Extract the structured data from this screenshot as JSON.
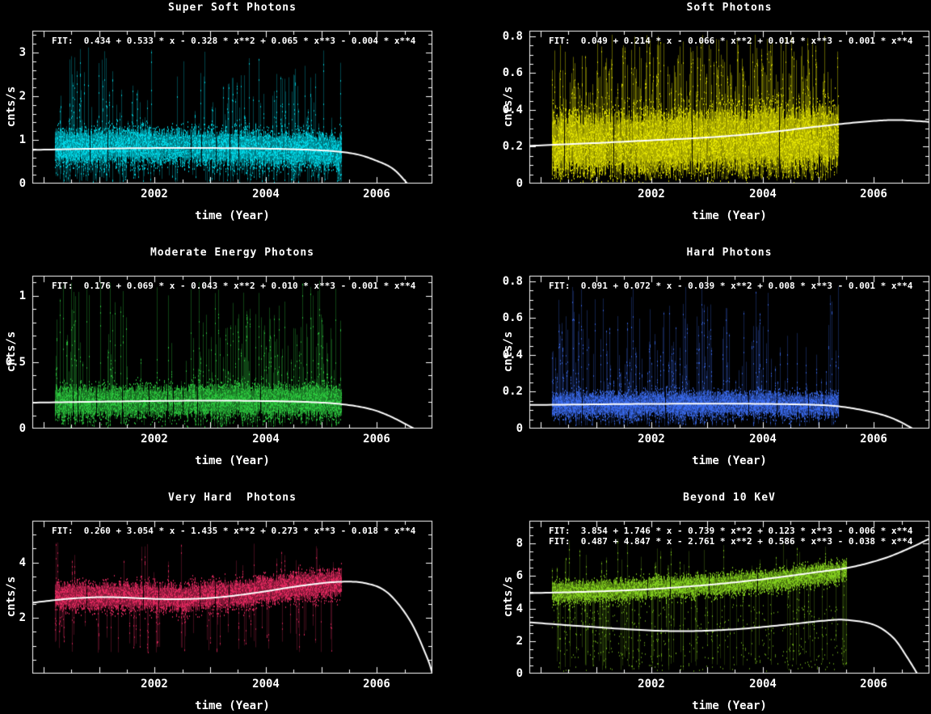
{
  "figure": {
    "background": "#000000",
    "text_color": "#ffffff",
    "axis_color": "#ffffff",
    "fit_curve_color": "#ffffff"
  },
  "chart_data": [
    {
      "type": "scatter",
      "title": "Super Soft Photons",
      "xlabel": "time (Year)",
      "ylabel": "cnts/s",
      "xlim": [
        1999.8,
        2007.0
      ],
      "ylim": [
        0,
        3.5
      ],
      "xticks": [
        2002,
        2004,
        2006
      ],
      "xtick_labels": [
        "2002",
        "2004",
        "2006"
      ],
      "yticks": [
        0,
        1,
        2,
        3
      ],
      "ytick_labels": [
        "0",
        "1",
        "2",
        "3"
      ],
      "y_minor": 0.2,
      "x_data_range": [
        2000.2,
        2005.35
      ],
      "point_color": "#00dfee",
      "fit_labels": [
        "FIT:  0.434 + 0.533 * x - 0.328 * x**2 + 0.065 * x**3 - 0.004 * x**4"
      ],
      "fit_coefficients": [
        [
          0.434,
          0.533,
          -0.328,
          0.065,
          -0.004
        ]
      ],
      "fit_curves": [
        [
          [
            1999.8,
            0.77
          ],
          [
            2001.0,
            0.8
          ],
          [
            2002.5,
            0.815
          ],
          [
            2004.0,
            0.8
          ],
          [
            2005.0,
            0.76
          ],
          [
            2005.6,
            0.68
          ],
          [
            2006.0,
            0.52
          ],
          [
            2006.3,
            0.33
          ],
          [
            2006.55,
            0.0
          ]
        ]
      ],
      "scatter_profile": {
        "seed": 101,
        "baseline": [
          [
            2000.2,
            0.85
          ],
          [
            2001.5,
            0.86
          ],
          [
            2003.0,
            0.84
          ],
          [
            2004.2,
            0.8
          ],
          [
            2005.35,
            0.74
          ]
        ],
        "core_halfwidth": 0.33,
        "dashes": 9,
        "up": {
          "prob": 0.5,
          "max": 3.15,
          "pow": 1.8
        },
        "down": {
          "prob": 0.5,
          "min": 0.02
        },
        "line_alpha": 0.3,
        "dash_alpha": 0.85
      }
    },
    {
      "type": "scatter",
      "title": "Soft Photons",
      "xlabel": "time (Year)",
      "ylabel": "cnts/s",
      "xlim": [
        1999.8,
        2007.0
      ],
      "ylim": [
        0,
        0.83
      ],
      "xticks": [
        2002,
        2004,
        2006
      ],
      "xtick_labels": [
        "2002",
        "2004",
        "2006"
      ],
      "yticks": [
        0,
        0.2,
        0.4,
        0.6,
        0.8
      ],
      "ytick_labels": [
        "0",
        "0.2",
        "0.4",
        "0.6",
        "0.8"
      ],
      "y_minor": 0.05,
      "x_data_range": [
        2000.2,
        2005.35
      ],
      "point_color": "#ecec00",
      "fit_labels": [
        "FIT:  0.049 + 0.214 * x - 0.066 * x**2 + 0.014 * x**3 - 0.001 * x**4"
      ],
      "fit_coefficients": [
        [
          0.049,
          0.214,
          -0.066,
          0.014,
          -0.001
        ]
      ],
      "fit_curves": [
        [
          [
            1999.8,
            0.205
          ],
          [
            2001.0,
            0.22
          ],
          [
            2002.0,
            0.235
          ],
          [
            2003.0,
            0.25
          ],
          [
            2004.0,
            0.275
          ],
          [
            2005.0,
            0.31
          ],
          [
            2005.8,
            0.335
          ],
          [
            2006.4,
            0.345
          ],
          [
            2007.0,
            0.335
          ]
        ]
      ],
      "scatter_profile": {
        "seed": 202,
        "baseline": [
          [
            2000.2,
            0.22
          ],
          [
            2002.5,
            0.23
          ],
          [
            2005.35,
            0.26
          ]
        ],
        "core_halfwidth": 0.14,
        "dashes": 10,
        "up": {
          "prob": 0.9,
          "max": 0.81,
          "pow": 1.15
        },
        "down": {
          "prob": 0.75,
          "min": 0.015
        },
        "line_alpha": 0.4,
        "dash_alpha": 0.85
      }
    },
    {
      "type": "scatter",
      "title": "Moderate Energy Photons",
      "xlabel": "time (Year)",
      "ylabel": "cnts/s",
      "xlim": [
        1999.8,
        2007.0
      ],
      "ylim": [
        0,
        1.15
      ],
      "xticks": [
        2002,
        2004,
        2006
      ],
      "xtick_labels": [
        "2002",
        "2004",
        "2006"
      ],
      "yticks": [
        0,
        0.5,
        1
      ],
      "ytick_labels": [
        "0",
        "0.5",
        "1"
      ],
      "y_minor": 0.1,
      "x_data_range": [
        2000.2,
        2005.35
      ],
      "point_color": "#2ecc40",
      "fit_labels": [
        "FIT:  0.176 + 0.069 * x - 0.043 * x**2 + 0.010 * x**3 - 0.001 * x**4"
      ],
      "fit_coefficients": [
        [
          0.176,
          0.069,
          -0.043,
          0.01,
          -0.001
        ]
      ],
      "fit_curves": [
        [
          [
            1999.8,
            0.195
          ],
          [
            2001.5,
            0.205
          ],
          [
            2003.0,
            0.21
          ],
          [
            2004.3,
            0.205
          ],
          [
            2005.2,
            0.19
          ],
          [
            2005.8,
            0.155
          ],
          [
            2006.2,
            0.1
          ],
          [
            2006.67,
            0.0
          ]
        ]
      ],
      "scatter_profile": {
        "seed": 303,
        "baseline": [
          [
            2000.2,
            0.2
          ],
          [
            2003.0,
            0.21
          ],
          [
            2005.35,
            0.21
          ]
        ],
        "core_halfwidth": 0.1,
        "dashes": 9,
        "up": {
          "prob": 0.62,
          "max": 1.12,
          "pow": 1.5
        },
        "down": {
          "prob": 0.5,
          "min": 0.012
        },
        "line_alpha": 0.33,
        "dash_alpha": 0.85
      }
    },
    {
      "type": "scatter",
      "title": "Hard Photons",
      "xlabel": "time (Year)",
      "ylabel": "cnts/s",
      "xlim": [
        1999.8,
        2007.0
      ],
      "ylim": [
        0,
        0.83
      ],
      "xticks": [
        2002,
        2004,
        2006
      ],
      "xtick_labels": [
        "2002",
        "2004",
        "2006"
      ],
      "yticks": [
        0,
        0.2,
        0.4,
        0.6,
        0.8
      ],
      "ytick_labels": [
        "0",
        "0.2",
        "0.4",
        "0.6",
        "0.8"
      ],
      "y_minor": 0.05,
      "x_data_range": [
        2000.2,
        2005.35
      ],
      "point_color": "#3b6cf0",
      "fit_labels": [
        "FIT:  0.091 + 0.072 * x - 0.039 * x**2 + 0.008 * x**3 - 0.001 * x**4"
      ],
      "fit_coefficients": [
        [
          0.091,
          0.072,
          -0.039,
          0.008,
          -0.001
        ]
      ],
      "fit_curves": [
        [
          [
            1999.8,
            0.128
          ],
          [
            2001.5,
            0.133
          ],
          [
            2003.0,
            0.135
          ],
          [
            2004.3,
            0.133
          ],
          [
            2005.2,
            0.125
          ],
          [
            2005.8,
            0.1
          ],
          [
            2006.3,
            0.06
          ],
          [
            2006.7,
            0.0
          ]
        ]
      ],
      "scatter_profile": {
        "seed": 404,
        "baseline": [
          [
            2000.2,
            0.13
          ],
          [
            2003.0,
            0.135
          ],
          [
            2005.35,
            0.13
          ]
        ],
        "core_halfwidth": 0.055,
        "dashes": 9,
        "up": {
          "prob": 0.55,
          "max": 0.79,
          "pow": 1.5
        },
        "down": {
          "prob": 0.45,
          "min": 0.012
        },
        "line_alpha": 0.3,
        "dash_alpha": 0.85
      }
    },
    {
      "type": "scatter",
      "title": "Very Hard  Photons",
      "xlabel": "time (Year)",
      "ylabel": "cnts/s",
      "xlim": [
        1999.8,
        2007.0
      ],
      "ylim": [
        0,
        5.5
      ],
      "xticks": [
        2002,
        2004,
        2006
      ],
      "xtick_labels": [
        "2002",
        "2004",
        "2006"
      ],
      "yticks": [
        2,
        4
      ],
      "ytick_labels": [
        "2",
        "4"
      ],
      "y_minor": 0.5,
      "x_data_range": [
        2000.2,
        2005.35
      ],
      "point_color": "#ea2a62",
      "fit_labels": [
        "FIT:  0.260 + 3.054 * x - 1.435 * x**2 + 0.273 * x**3 - 0.018 * x**4"
      ],
      "fit_coefficients": [
        [
          0.26,
          3.054,
          -1.435,
          0.273,
          -0.018
        ]
      ],
      "fit_curves": [
        [
          [
            1999.8,
            2.55
          ],
          [
            2000.5,
            2.7
          ],
          [
            2001.2,
            2.75
          ],
          [
            2002.2,
            2.68
          ],
          [
            2003.0,
            2.72
          ],
          [
            2003.8,
            2.9
          ],
          [
            2004.6,
            3.15
          ],
          [
            2005.3,
            3.3
          ],
          [
            2005.8,
            3.25
          ],
          [
            2006.2,
            2.9
          ],
          [
            2006.6,
            1.9
          ],
          [
            2006.9,
            0.6
          ],
          [
            2007.0,
            0.0
          ]
        ]
      ],
      "scatter_profile": {
        "seed": 505,
        "baseline": [
          [
            2000.2,
            2.78
          ],
          [
            2001.3,
            2.8
          ],
          [
            2002.5,
            2.72
          ],
          [
            2003.6,
            2.9
          ],
          [
            2004.6,
            3.15
          ],
          [
            2005.35,
            3.28
          ]
        ],
        "core_halfwidth": 0.42,
        "dashes": 9,
        "up": {
          "prob": 0.4,
          "max": 4.9,
          "pow": 1.7
        },
        "down": {
          "prob": 0.42,
          "min": 0.75
        },
        "line_alpha": 0.28,
        "dash_alpha": 0.85
      }
    },
    {
      "type": "scatter",
      "title": "Beyond 10 KeV",
      "xlabel": "time (Year)",
      "ylabel": "cnts/s",
      "xlim": [
        1999.8,
        2007.0
      ],
      "ylim": [
        0,
        9.4
      ],
      "xticks": [
        2002,
        2004,
        2006
      ],
      "xtick_labels": [
        "2002",
        "2004",
        "2006"
      ],
      "yticks": [
        0,
        2,
        4,
        6,
        8
      ],
      "ytick_labels": [
        "0",
        "2",
        "4",
        "6",
        "8"
      ],
      "y_minor": 0.5,
      "x_data_range": [
        2000.2,
        2005.5
      ],
      "point_color": "#86d41e",
      "fit_labels": [
        "FIT:  3.854 + 1.746 * x - 0.739 * x**2 + 0.123 * x**3 - 0.006 * x**4",
        "FIT:  0.487 + 4.847 * x - 2.761 * x**2 + 0.586 * x**3 - 0.038 * x**4"
      ],
      "fit_coefficients": [
        [
          3.854,
          1.746,
          -0.739,
          0.123,
          -0.006
        ],
        [
          0.487,
          4.847,
          -2.761,
          0.586,
          -0.038
        ]
      ],
      "fit_curves": [
        [
          [
            1999.8,
            4.95
          ],
          [
            2001.0,
            5.05
          ],
          [
            2002.0,
            5.2
          ],
          [
            2003.0,
            5.45
          ],
          [
            2004.0,
            5.8
          ],
          [
            2005.0,
            6.25
          ],
          [
            2005.6,
            6.55
          ],
          [
            2006.2,
            7.1
          ],
          [
            2006.7,
            7.8
          ],
          [
            2007.0,
            8.3
          ]
        ],
        [
          [
            1999.8,
            3.15
          ],
          [
            2000.8,
            2.9
          ],
          [
            2002.0,
            2.65
          ],
          [
            2002.8,
            2.62
          ],
          [
            2003.6,
            2.75
          ],
          [
            2004.4,
            3.0
          ],
          [
            2005.1,
            3.25
          ],
          [
            2005.5,
            3.3
          ],
          [
            2006.0,
            3.0
          ],
          [
            2006.35,
            2.2
          ],
          [
            2006.6,
            1.0
          ],
          [
            2006.78,
            0.0
          ]
        ]
      ],
      "scatter_profile": {
        "seed": 606,
        "baseline": [
          [
            2000.2,
            5.0
          ],
          [
            2001.5,
            5.15
          ],
          [
            2003.0,
            5.45
          ],
          [
            2004.2,
            5.75
          ],
          [
            2005.5,
            6.35
          ]
        ],
        "core_halfwidth": 0.55,
        "dashes": 9,
        "up": {
          "prob": 0.32,
          "max": 8.3,
          "pow": 1.8
        },
        "down": {
          "prob": 0.3,
          "min": 0.2
        },
        "line_alpha": 0.25,
        "dash_alpha": 0.85,
        "lower_cloud": {
          "prob": 0.6,
          "ymin": 0.2,
          "ymax": 4.3,
          "dashes": 2,
          "line_prob": 0.15,
          "line_alpha": 0.2
        }
      }
    }
  ]
}
